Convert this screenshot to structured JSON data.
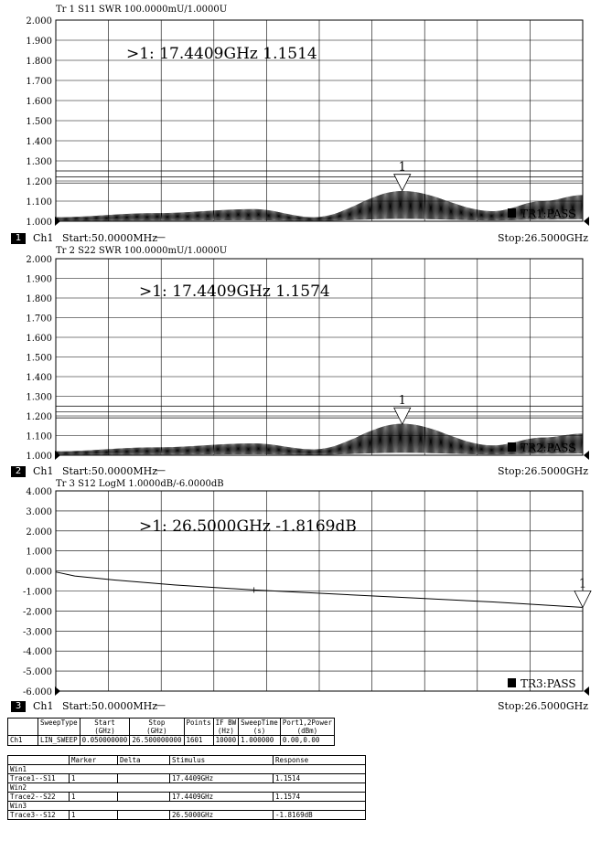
{
  "chart_data": [
    {
      "type": "line",
      "header": "Tr 1  S11 SWR 100.0000mU/1.0000U",
      "ylim": [
        1.0,
        2.0
      ],
      "yticks": [
        "2.000",
        "1.900",
        "1.800",
        "1.700",
        "1.600",
        "1.500",
        "1.400",
        "1.300",
        "1.200",
        "1.100",
        "1.000"
      ],
      "xlim_ghz": [
        0.05,
        26.5
      ],
      "grid": true,
      "limit_lines": [
        1.25,
        1.22,
        1.19
      ],
      "marker_readout": ">1:   17.4409GHz  1.1514",
      "marker": {
        "label": "1",
        "x_ghz": 17.4409,
        "y": 1.1514
      },
      "status": "TR1:PASS",
      "series": [
        {
          "type": "swr_ripple",
          "points_x_ghz": [
            0.05,
            5,
            10,
            13,
            17.44,
            22,
            24.5,
            26.5
          ],
          "envelope": [
            1.02,
            1.04,
            1.06,
            1.02,
            1.15,
            1.05,
            1.1,
            1.13
          ]
        }
      ]
    },
    {
      "type": "line",
      "header": "Tr 2  S22 SWR 100.0000mU/1.0000U",
      "ylim": [
        1.0,
        2.0
      ],
      "yticks": [
        "2.000",
        "1.900",
        "1.800",
        "1.700",
        "1.600",
        "1.500",
        "1.400",
        "1.300",
        "1.200",
        "1.100",
        "1.000"
      ],
      "xlim_ghz": [
        0.05,
        26.5
      ],
      "grid": true,
      "limit_lines": [
        1.25,
        1.22,
        1.19
      ],
      "marker_readout": ">1:   17.4409GHz  1.1574",
      "marker": {
        "label": "1",
        "x_ghz": 17.4409,
        "y": 1.1574
      },
      "status": "TR2:PASS",
      "series": [
        {
          "type": "swr_ripple",
          "points_x_ghz": [
            0.05,
            5,
            10,
            13,
            17.44,
            22,
            24.5,
            26.5
          ],
          "envelope": [
            1.02,
            1.04,
            1.06,
            1.03,
            1.16,
            1.05,
            1.09,
            1.11
          ]
        }
      ]
    },
    {
      "type": "line",
      "header": "Tr 3  S12 LogM 1.0000dB/-6.0000dB",
      "ylim": [
        -6.0,
        4.0
      ],
      "yticks": [
        "4.000",
        "3.000",
        "2.000",
        "1.000",
        "0.000",
        "-1.000",
        "-2.000",
        "-3.000",
        "-4.000",
        "-5.000",
        "-6.000"
      ],
      "xlim_ghz": [
        0.05,
        26.5
      ],
      "grid": true,
      "limit_lines": [],
      "marker_readout": ">1:   26.5000GHz  -1.8169dB",
      "marker": {
        "label": "1",
        "x_ghz": 26.5,
        "y": -1.8169
      },
      "status": "TR3:PASS",
      "series": [
        {
          "type": "smooth",
          "x_ghz": [
            0.05,
            1,
            3,
            6,
            10,
            14,
            18,
            22,
            26.5
          ],
          "y": [
            -0.05,
            -0.25,
            -0.45,
            -0.7,
            -0.95,
            -1.15,
            -1.35,
            -1.55,
            -1.8169
          ]
        }
      ]
    }
  ],
  "footers": [
    {
      "num": "1",
      "channel": "Ch1",
      "start": "Start:50.0000MHz",
      "dash": "—",
      "stop": "Stop:26.5000GHz"
    },
    {
      "num": "2",
      "channel": "Ch1",
      "start": "Start:50.0000MHz",
      "dash": "—",
      "stop": "Stop:26.5000GHz"
    },
    {
      "num": "3",
      "channel": "Ch1",
      "start": "Start:50.0000MHz",
      "dash": "—",
      "stop": "Stop:26.5000GHz"
    }
  ],
  "sweep_table": {
    "headers": [
      [
        "",
        ""
      ],
      [
        "SweepType",
        ""
      ],
      [
        "Start",
        "(GHz)"
      ],
      [
        "Stop",
        "(GHz)"
      ],
      [
        "Points",
        ""
      ],
      [
        "IF BW",
        "(Hz)"
      ],
      [
        "SweepTime",
        "(s)"
      ],
      [
        "Port1,2Power",
        "(dBm)"
      ]
    ],
    "row": [
      "Ch1",
      "LIN_SWEEP",
      "0.050000000",
      "26.500000000",
      "1601",
      "10000",
      "1.000000",
      "0.00,0.00"
    ]
  },
  "marker_table": {
    "headers": [
      "",
      "Marker",
      "Delta",
      "Stimulus",
      "Response"
    ],
    "groups": [
      {
        "win": "Win1",
        "trace": "Trace1--S11",
        "marker": "1",
        "delta": "",
        "stimulus": "17.4409GHz",
        "response": "1.1514"
      },
      {
        "win": "Win2",
        "trace": "Trace2--S22",
        "marker": "1",
        "delta": "",
        "stimulus": "17.4409GHz",
        "response": "1.1574"
      },
      {
        "win": "Win3",
        "trace": "Trace3--S12",
        "marker": "1",
        "delta": "",
        "stimulus": "26.5000GHz",
        "response": "-1.8169dB"
      }
    ]
  }
}
